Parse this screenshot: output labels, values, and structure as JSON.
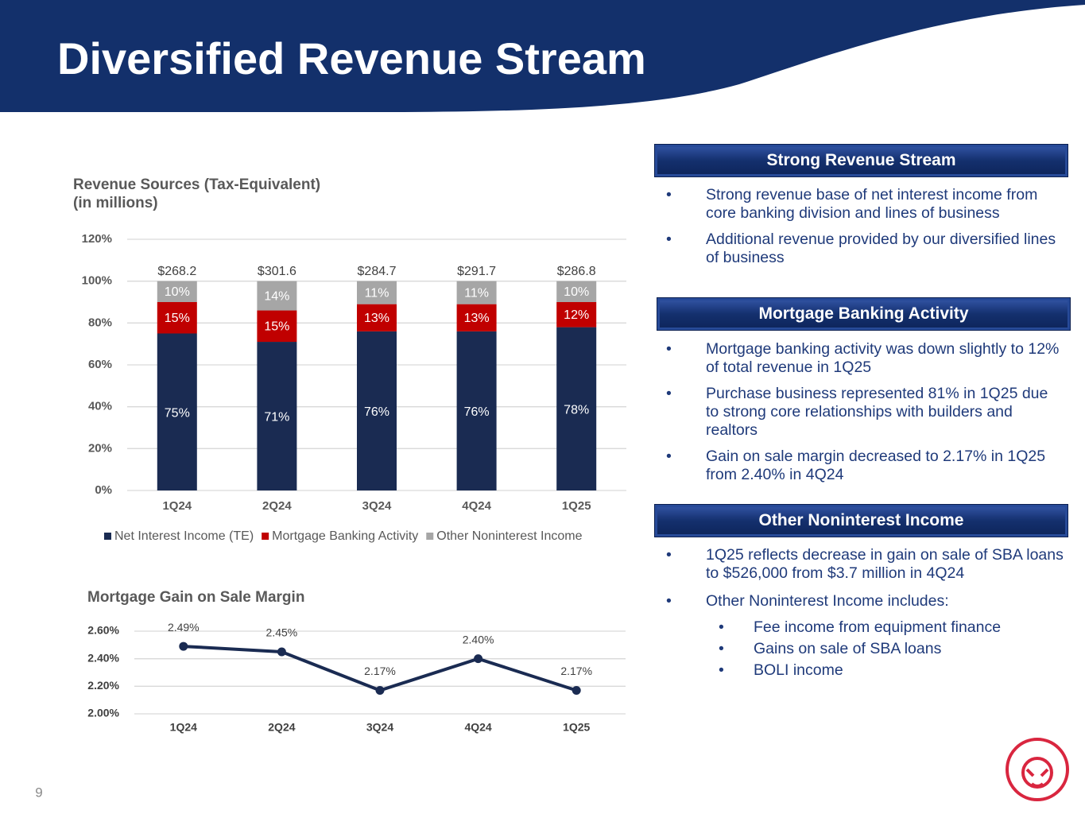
{
  "header": {
    "title": "Diversified Revenue Stream"
  },
  "page_number": "9",
  "panels": [
    {
      "heading": "Strong Revenue Stream",
      "bullets": [
        {
          "text": "Strong revenue base of net interest income from core banking division and lines of business"
        },
        {
          "text": "Additional revenue provided by our diversified lines of business"
        }
      ]
    },
    {
      "heading": "Mortgage Banking Activity",
      "bullets": [
        {
          "text": "Mortgage banking activity was down slightly to 12% of total revenue in 1Q25"
        },
        {
          "text": "Purchase business represented 81% in 1Q25 due to strong core relationships with builders and realtors"
        },
        {
          "text": "Gain on sale margin decreased to 2.17% in 1Q25 from 2.40% in 4Q24"
        }
      ]
    },
    {
      "heading": "Other Noninterest Income",
      "bullets": [
        {
          "text": "1Q25 reflects decrease in gain on sale of SBA loans to $526,000 from $3.7 million in 4Q24"
        },
        {
          "text": "Other Noninterest Income includes:",
          "sub": [
            "Fee income from equipment finance",
            "Gains on sale of SBA loans",
            "BOLI income"
          ]
        }
      ]
    }
  ],
  "chart_data": [
    {
      "type": "stacked-bar",
      "title": "Revenue Sources (Tax-Equivalent)",
      "subtitle": "(in millions)",
      "categories": [
        "1Q24",
        "2Q24",
        "3Q24",
        "4Q24",
        "1Q25"
      ],
      "series": [
        {
          "name": "Net Interest Income (TE)",
          "color": "#1a2b52",
          "label_color": "#ffffff",
          "values": [
            75,
            71,
            76,
            76,
            78
          ],
          "value_labels": [
            "75%",
            "71%",
            "76%",
            "76%",
            "78%"
          ]
        },
        {
          "name": "Mortgage Banking Activity",
          "color": "#c00000",
          "label_color": "#ffffff",
          "values": [
            15,
            15,
            13,
            13,
            12
          ],
          "value_labels": [
            "15%",
            "15%",
            "13%",
            "13%",
            "12%"
          ]
        },
        {
          "name": "Other Noninterest Income",
          "color": "#a6a6a6",
          "label_color": "#ffffff",
          "values": [
            10,
            14,
            11,
            11,
            10
          ],
          "value_labels": [
            "10%",
            "14%",
            "11%",
            "11%",
            "10%"
          ]
        }
      ],
      "annotations": [
        "$268.2",
        "$301.6",
        "$284.7",
        "$291.7",
        "$286.8"
      ],
      "ylim": [
        0,
        120
      ],
      "yticks": [
        {
          "value": 0,
          "label": "0%"
        },
        {
          "value": 20,
          "label": "20%"
        },
        {
          "value": 40,
          "label": "40%"
        },
        {
          "value": 60,
          "label": "60%"
        },
        {
          "value": 80,
          "label": "80%"
        },
        {
          "value": 100,
          "label": "100%"
        },
        {
          "value": 120,
          "label": "120%"
        }
      ],
      "grid": true,
      "legend": "bottom"
    },
    {
      "type": "line",
      "title": "Mortgage Gain on Sale Margin",
      "categories": [
        "1Q24",
        "2Q24",
        "3Q24",
        "4Q24",
        "1Q25"
      ],
      "values": [
        2.49,
        2.45,
        2.17,
        2.4,
        2.17
      ],
      "value_labels": [
        "2.49%",
        "2.45%",
        "2.17%",
        "2.40%",
        "2.17%"
      ],
      "color": "#1a2b52",
      "ylim": [
        2.0,
        2.6
      ],
      "yticks": [
        {
          "value": 2.0,
          "label": "2.00%"
        },
        {
          "value": 2.2,
          "label": "2.20%"
        },
        {
          "value": 2.4,
          "label": "2.40%"
        },
        {
          "value": 2.6,
          "label": "2.60%"
        }
      ],
      "grid": true
    }
  ]
}
